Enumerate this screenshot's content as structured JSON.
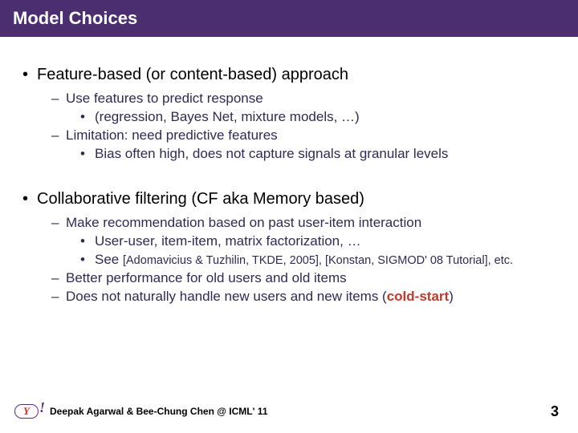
{
  "title": "Model Choices",
  "points": {
    "p1": "Feature-based (or content-based) approach",
    "p1_1": "Use features to predict response",
    "p1_1_1": "(regression, Bayes Net, mixture models, …)",
    "p1_2": "Limitation: need predictive features",
    "p1_2_1": "Bias often high, does not capture signals at granular levels",
    "p2": "Collaborative filtering (CF aka Memory based)",
    "p2_1": "Make recommendation based on past user-item interaction",
    "p2_1_1": "User-user, item-item, matrix factorization, …",
    "p2_1_2_a": "See ",
    "p2_1_2_b": "[Adomavicius & Tuzhilin, TKDE, 2005], [Konstan, SIGMOD' 08 Tutorial], etc.",
    "p2_2": "Better performance for old users and old items",
    "p2_3_a": "Does not naturally handle new users and new items (",
    "p2_3_cold": "cold-start",
    "p2_3_b": ")"
  },
  "footer": {
    "authors": "Deepak Agarwal & Bee-Chung Chen @ ICML' 11",
    "page": "3",
    "logo_y": "Y",
    "logo_bang": "!"
  },
  "colors": {
    "title_bg": "#4b2e6f",
    "title_fg": "#ffffff",
    "body_bg": "#ffffff",
    "l1_color": "#000000",
    "l2_color": "#2f2a55",
    "cold_start": "#c0392b",
    "logo_purple": "#5b2a82",
    "logo_red": "#d9261c"
  }
}
